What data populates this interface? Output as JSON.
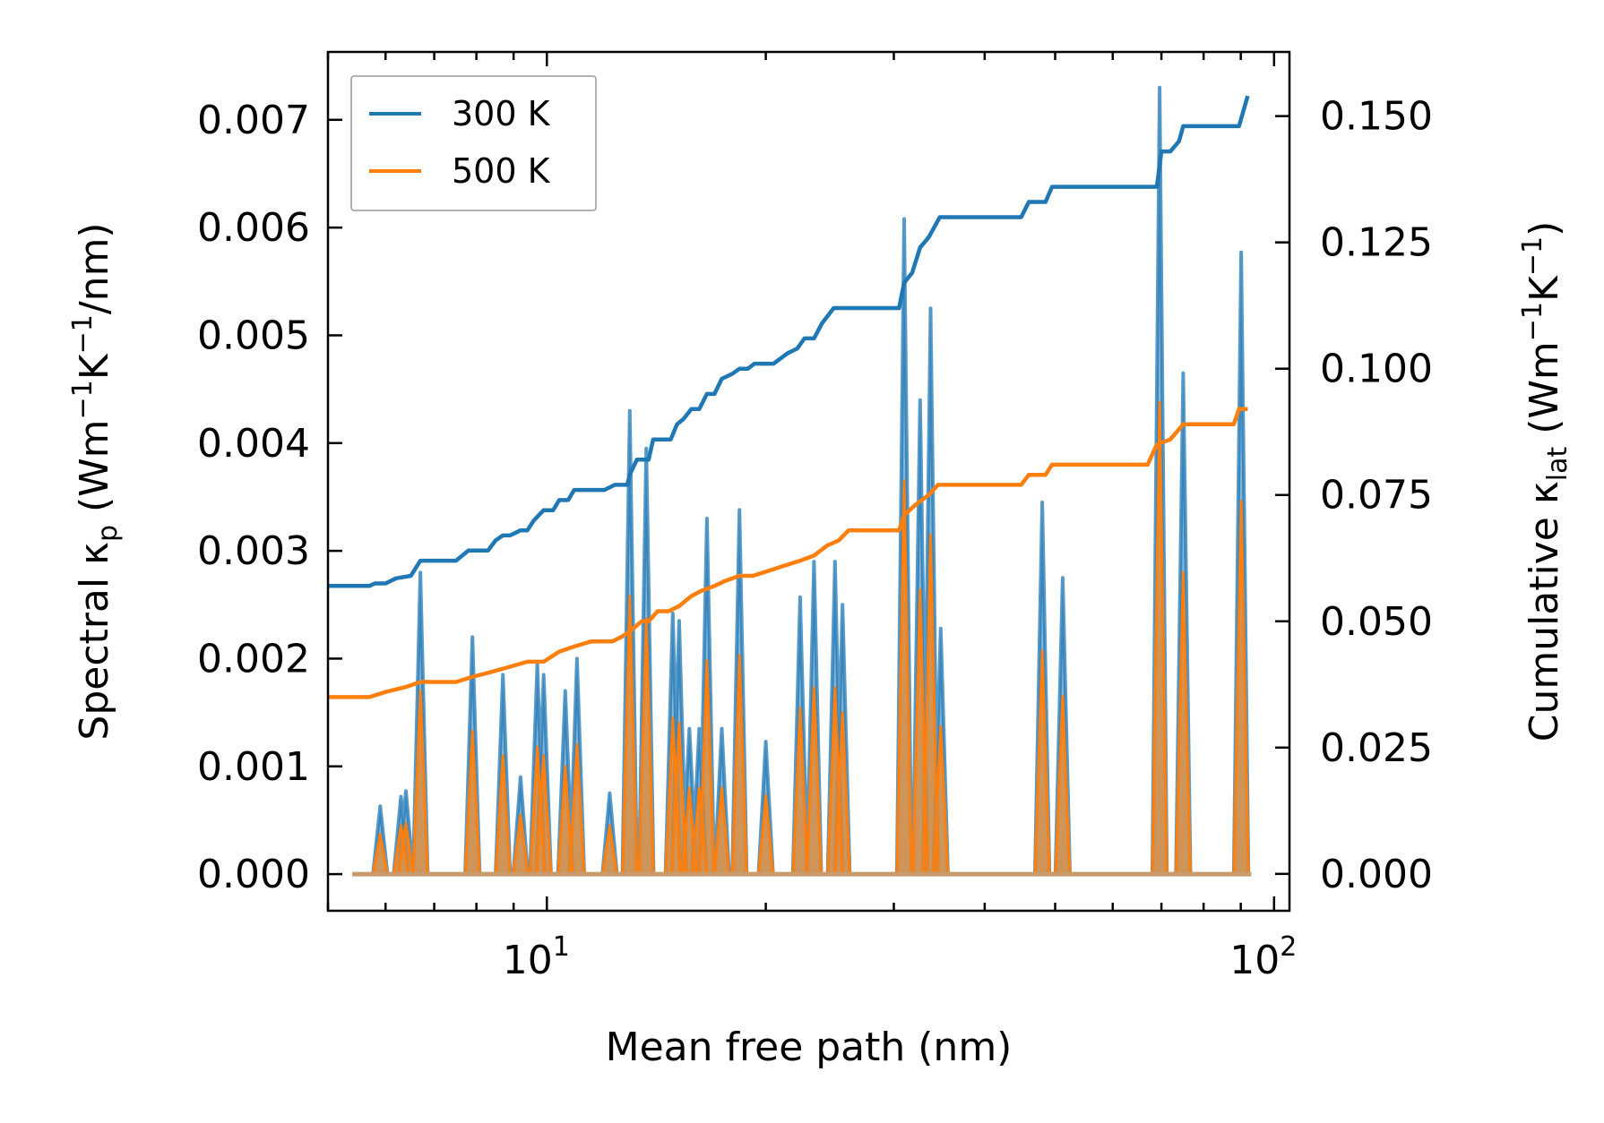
{
  "chart_data": {
    "type": "line",
    "title": "",
    "xlabel": "Mean free path (nm)",
    "xscale": "log",
    "xlim": [
      5.0,
      105.0
    ],
    "x_tick_labels": [
      {
        "value": 10,
        "base": "10",
        "exp": "1"
      },
      {
        "value": 100,
        "base": "10",
        "exp": "2"
      }
    ],
    "y_left": {
      "label_parts": [
        "Spectral κ",
        "p",
        " (Wm",
        "−1",
        "K",
        "−1",
        "/nm)"
      ],
      "lim": [
        -0.00034,
        0.00763
      ],
      "ticks": [
        0.0,
        0.001,
        0.002,
        0.003,
        0.004,
        0.005,
        0.006,
        0.007
      ],
      "tick_labels": [
        "0.000",
        "0.001",
        "0.002",
        "0.003",
        "0.004",
        "0.005",
        "0.006",
        "0.007"
      ]
    },
    "y_right": {
      "label_parts": [
        "Cumulative κ",
        "lat",
        " (Wm",
        "−1",
        "K",
        "−1",
        ")"
      ],
      "lim": [
        -0.0073,
        0.1627
      ],
      "ticks": [
        0.0,
        0.025,
        0.05,
        0.075,
        0.1,
        0.125,
        0.15
      ],
      "tick_labels": [
        "0.000",
        "0.025",
        "0.050",
        "0.075",
        "0.100",
        "0.125",
        "0.150"
      ]
    },
    "legend": {
      "location": "upper-left",
      "entries": [
        {
          "name": "300 K",
          "color": "#1f77b4"
        },
        {
          "name": "500 K",
          "color": "#ff7f0e"
        }
      ]
    },
    "spectral_peaks": {
      "note": "spectral kappa_p vs MFP, plotted on left axis; zero between peaks",
      "300K": [
        [
          5.9,
          0.00063
        ],
        [
          6.3,
          0.00072
        ],
        [
          6.4,
          0.00077
        ],
        [
          6.7,
          0.0028
        ],
        [
          7.9,
          0.0022
        ],
        [
          8.7,
          0.00185
        ],
        [
          9.2,
          0.0009
        ],
        [
          9.7,
          0.00195
        ],
        [
          9.9,
          0.00185
        ],
        [
          10.6,
          0.0017
        ],
        [
          11.0,
          0.002
        ],
        [
          12.2,
          0.00075
        ],
        [
          13.0,
          0.0043
        ],
        [
          13.7,
          0.00395
        ],
        [
          14.9,
          0.00242
        ],
        [
          15.2,
          0.00235
        ],
        [
          15.7,
          0.00135
        ],
        [
          16.2,
          0.00135
        ],
        [
          16.6,
          0.0033
        ],
        [
          17.4,
          0.00135
        ],
        [
          18.4,
          0.00338
        ],
        [
          20.0,
          0.00123
        ],
        [
          22.3,
          0.00257
        ],
        [
          23.3,
          0.0029
        ],
        [
          24.9,
          0.0029
        ],
        [
          25.5,
          0.0025
        ],
        [
          31.0,
          0.00608
        ],
        [
          32.6,
          0.0044
        ],
        [
          33.7,
          0.00525
        ],
        [
          34.8,
          0.00228
        ],
        [
          48.0,
          0.00345
        ],
        [
          51.2,
          0.00275
        ],
        [
          69.6,
          0.0073
        ],
        [
          75.0,
          0.00465
        ],
        [
          90.1,
          0.00577
        ]
      ],
      "500K": [
        [
          5.9,
          0.00037
        ],
        [
          6.3,
          0.00045
        ],
        [
          6.4,
          0.00047
        ],
        [
          6.7,
          0.0017
        ],
        [
          7.9,
          0.00133
        ],
        [
          8.7,
          0.0011
        ],
        [
          9.2,
          0.00055
        ],
        [
          9.7,
          0.00118
        ],
        [
          9.9,
          0.0011
        ],
        [
          10.6,
          0.001
        ],
        [
          11.0,
          0.0012
        ],
        [
          12.2,
          0.00045
        ],
        [
          13.0,
          0.00258
        ],
        [
          13.7,
          0.00237
        ],
        [
          14.9,
          0.00145
        ],
        [
          15.2,
          0.0014
        ],
        [
          15.7,
          0.0008
        ],
        [
          16.2,
          0.0008
        ],
        [
          16.6,
          0.00198
        ],
        [
          17.4,
          0.0008
        ],
        [
          18.4,
          0.00203
        ],
        [
          20.0,
          0.00073
        ],
        [
          22.3,
          0.00154
        ],
        [
          23.3,
          0.00173
        ],
        [
          24.9,
          0.00173
        ],
        [
          25.5,
          0.0015
        ],
        [
          31.0,
          0.00365
        ],
        [
          32.6,
          0.00264
        ],
        [
          33.7,
          0.00315
        ],
        [
          34.8,
          0.00137
        ],
        [
          48.0,
          0.00207
        ],
        [
          51.2,
          0.00165
        ],
        [
          69.6,
          0.00438
        ],
        [
          75.0,
          0.0028
        ],
        [
          90.1,
          0.00346
        ]
      ]
    },
    "series": [
      {
        "name": "300 K",
        "axis": "right",
        "color": "#1f77b4",
        "x": [
          5.0,
          5.7,
          5.8,
          6.0,
          6.2,
          6.5,
          6.7,
          7.5,
          7.8,
          8.3,
          8.5,
          8.7,
          8.9,
          9.2,
          9.4,
          9.6,
          9.9,
          10.2,
          10.4,
          10.7,
          10.9,
          11.1,
          11.3,
          11.6,
          12.0,
          12.4,
          12.7,
          12.9,
          13.0,
          13.3,
          13.8,
          14.0,
          14.4,
          14.8,
          15.1,
          15.4,
          15.8,
          16.2,
          16.6,
          17.0,
          17.4,
          18.0,
          18.4,
          18.9,
          19.3,
          19.8,
          20.5,
          21.4,
          22.1,
          22.6,
          23.3,
          23.9,
          24.8,
          25.4,
          26.1,
          30.5,
          31.0,
          31.8,
          32.6,
          33.5,
          34.1,
          34.7,
          35.5,
          44.9,
          46.0,
          48.5,
          49.5,
          51.0,
          55.0,
          67.0,
          69.0,
          70.0,
          72.0,
          74.0,
          75.0,
          88.0,
          89.5,
          92.0
        ],
        "y": [
          0.057,
          0.057,
          0.0575,
          0.0575,
          0.0585,
          0.059,
          0.062,
          0.062,
          0.064,
          0.064,
          0.066,
          0.067,
          0.067,
          0.068,
          0.068,
          0.07,
          0.072,
          0.072,
          0.074,
          0.074,
          0.076,
          0.076,
          0.076,
          0.076,
          0.076,
          0.077,
          0.077,
          0.077,
          0.079,
          0.082,
          0.082,
          0.086,
          0.086,
          0.086,
          0.089,
          0.09,
          0.092,
          0.092,
          0.095,
          0.095,
          0.098,
          0.099,
          0.1,
          0.1,
          0.101,
          0.101,
          0.101,
          0.103,
          0.104,
          0.106,
          0.106,
          0.109,
          0.112,
          0.112,
          0.112,
          0.112,
          0.117,
          0.119,
          0.124,
          0.126,
          0.128,
          0.13,
          0.13,
          0.13,
          0.133,
          0.133,
          0.136,
          0.136,
          0.136,
          0.136,
          0.136,
          0.143,
          0.143,
          0.145,
          0.148,
          0.148,
          0.148,
          0.154
        ],
        "end": [
          92.0,
          0.154
        ]
      },
      {
        "name": "500 K",
        "axis": "right",
        "color": "#ff7f0e",
        "x": [
          5.0,
          5.7,
          6.0,
          6.4,
          6.7,
          7.5,
          7.9,
          8.4,
          8.9,
          9.4,
          9.9,
          10.4,
          10.9,
          11.5,
          12.3,
          12.7,
          13.0,
          13.5,
          13.8,
          14.2,
          14.7,
          15.2,
          15.8,
          16.3,
          17.0,
          17.6,
          18.4,
          19.2,
          20.2,
          21.2,
          22.3,
          23.3,
          24.3,
          25.2,
          26.0,
          30.5,
          31.0,
          32.1,
          33.5,
          34.5,
          35.5,
          44.9,
          46.0,
          48.5,
          49.5,
          51.0,
          55.0,
          67.0,
          69.0,
          72.0,
          74.0,
          75.0,
          88.0,
          89.5,
          92.0
        ],
        "y": [
          0.035,
          0.035,
          0.036,
          0.037,
          0.038,
          0.038,
          0.039,
          0.04,
          0.041,
          0.042,
          0.042,
          0.044,
          0.045,
          0.046,
          0.046,
          0.047,
          0.048,
          0.05,
          0.05,
          0.052,
          0.052,
          0.053,
          0.055,
          0.056,
          0.057,
          0.058,
          0.059,
          0.059,
          0.06,
          0.061,
          0.062,
          0.063,
          0.065,
          0.066,
          0.068,
          0.068,
          0.071,
          0.073,
          0.075,
          0.077,
          0.077,
          0.077,
          0.079,
          0.079,
          0.081,
          0.081,
          0.081,
          0.081,
          0.085,
          0.086,
          0.088,
          0.089,
          0.089,
          0.092,
          0.092
        ]
      }
    ]
  }
}
